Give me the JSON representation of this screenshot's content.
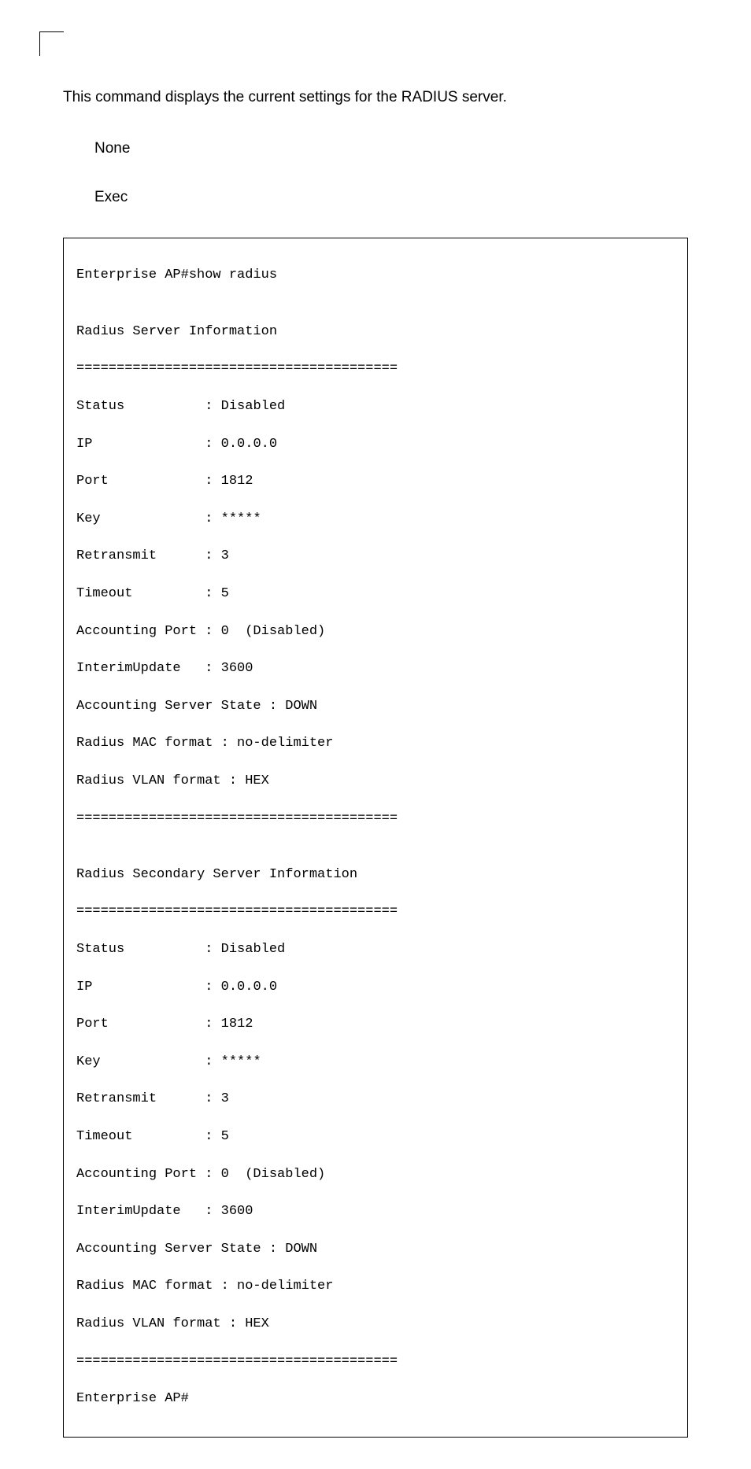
{
  "intro": "This command displays the current settings for the RADIUS server.",
  "labels": {
    "none": "None",
    "exec": "Exec"
  },
  "prompt_cmd": "Enterprise AP#show radius",
  "blank": "",
  "heading_primary": "Radius Server Information",
  "rule": "========================================",
  "primary": {
    "status_label": "Status          ",
    "status_val": ": Disabled",
    "ip_label": "IP              ",
    "ip_val": ": 0.0.0.0",
    "port_label": "Port            ",
    "port_val": ": 1812",
    "key_label": "Key             ",
    "key_val": ": *****",
    "retransmit_label": "Retransmit      ",
    "retransmit_val": ": 3",
    "timeout_label": "Timeout         ",
    "timeout_val": ": 5",
    "acct_port": "Accounting Port : 0  (Disabled)",
    "interim": "InterimUpdate   : 3600",
    "acct_state": "Accounting Server State : DOWN",
    "mac_format": "Radius MAC format : no-delimiter",
    "vlan_format": "Radius VLAN format : HEX"
  },
  "heading_secondary": "Radius Secondary Server Information",
  "secondary": {
    "status_label": "Status          ",
    "status_val": ": Disabled",
    "ip_label": "IP              ",
    "ip_val": ": 0.0.0.0",
    "port_label": "Port            ",
    "port_val": ": 1812",
    "key_label": "Key             ",
    "key_val": ": *****",
    "retransmit_label": "Retransmit      ",
    "retransmit_val": ": 3",
    "timeout_label": "Timeout         ",
    "timeout_val": ": 5",
    "acct_port": "Accounting Port : 0  (Disabled)",
    "interim": "InterimUpdate   : 3600",
    "acct_state": "Accounting Server State : DOWN",
    "mac_format": "Radius MAC format : no-delimiter",
    "vlan_format": "Radius VLAN format : HEX"
  },
  "prompt_end": "Enterprise AP#"
}
